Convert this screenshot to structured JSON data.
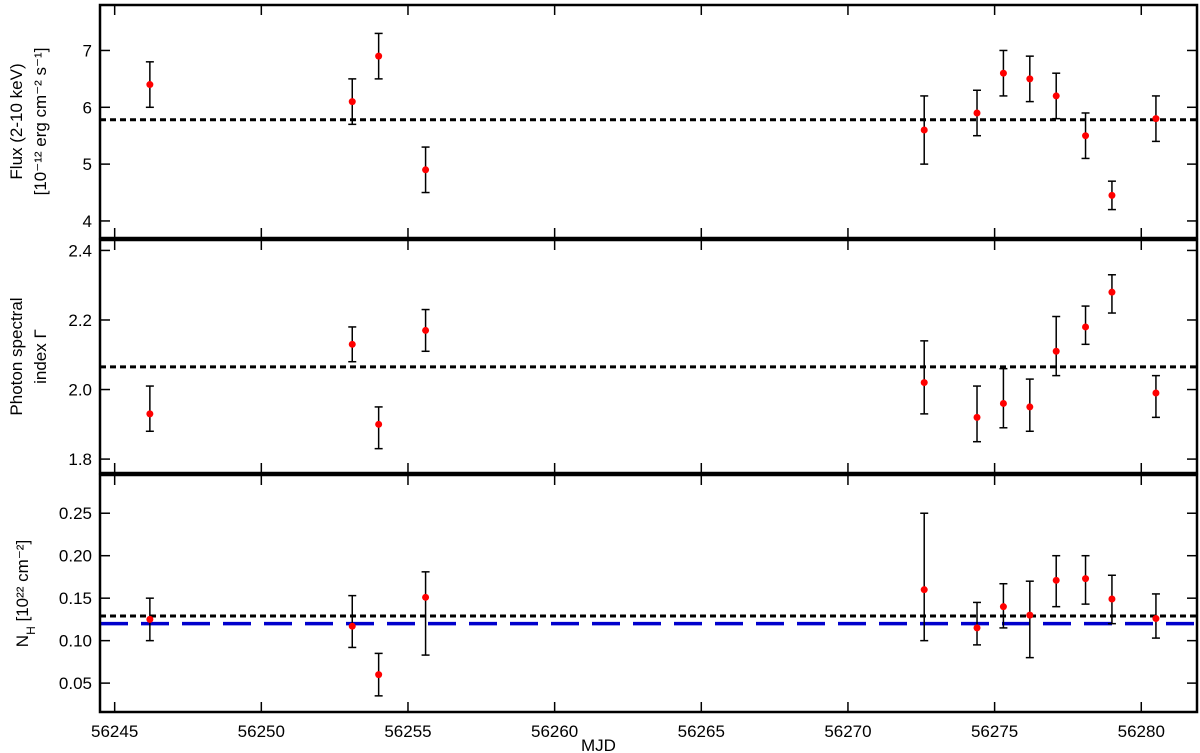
{
  "chart_data": [
    {
      "type": "scatter",
      "ylabel": [
        "Flux (2-10 keV)",
        "[10⁻¹² erg cm⁻² s⁻¹]"
      ],
      "x": [
        56246.2,
        56253.1,
        56254.0,
        56255.6,
        56272.6,
        56274.4,
        56275.3,
        56276.2,
        56277.1,
        56278.1,
        56279.0,
        56280.5
      ],
      "series": [
        {
          "color": "#ff0000",
          "values": [
            6.4,
            6.1,
            6.9,
            4.9,
            5.6,
            5.9,
            6.6,
            6.5,
            6.2,
            5.5,
            4.45,
            5.8
          ],
          "lower": [
            6.0,
            5.7,
            6.5,
            4.5,
            5.0,
            5.5,
            6.2,
            6.1,
            5.8,
            5.1,
            4.2,
            5.4
          ],
          "upper": [
            6.8,
            6.5,
            7.3,
            5.3,
            6.2,
            6.3,
            7.0,
            6.9,
            6.6,
            5.9,
            4.7,
            6.2
          ]
        }
      ],
      "hlines": [
        {
          "value": 5.78,
          "color": "#000000",
          "style": "dotted"
        }
      ],
      "xlim": [
        56244.5,
        56281.9
      ],
      "xticks": [
        56245,
        56250,
        56255,
        56260,
        56265,
        56270,
        56275,
        56280
      ],
      "ylim": [
        3.7,
        7.8
      ],
      "yticks": [
        4,
        5,
        6,
        7
      ]
    },
    {
      "type": "scatter",
      "ylabel": [
        "Photon spectral",
        "index Γ"
      ],
      "x": [
        56246.2,
        56253.1,
        56254.0,
        56255.6,
        56272.6,
        56274.4,
        56275.3,
        56276.2,
        56277.1,
        56278.1,
        56279.0,
        56280.5
      ],
      "series": [
        {
          "color": "#ff0000",
          "values": [
            1.93,
            2.13,
            1.9,
            2.17,
            2.02,
            1.92,
            1.96,
            1.95,
            2.11,
            2.18,
            2.28,
            1.99
          ],
          "lower": [
            1.88,
            2.08,
            1.83,
            2.11,
            1.93,
            1.85,
            1.89,
            1.88,
            2.04,
            2.13,
            2.22,
            1.92
          ],
          "upper": [
            2.01,
            2.18,
            1.95,
            2.23,
            2.14,
            2.01,
            2.06,
            2.03,
            2.21,
            2.24,
            2.33,
            2.04
          ]
        }
      ],
      "hlines": [
        {
          "value": 2.065,
          "color": "#000000",
          "style": "dotted"
        }
      ],
      "xlim": [
        56244.5,
        56281.9
      ],
      "xticks": [
        56245,
        56250,
        56255,
        56260,
        56265,
        56270,
        56275,
        56280
      ],
      "ylim": [
        1.76,
        2.43
      ],
      "yticks": [
        {
          "value": 1.8,
          "label": "1.8"
        },
        {
          "value": 2.0,
          "label": "2.0"
        },
        {
          "value": 2.2,
          "label": "2.2"
        },
        {
          "value": 2.4,
          "label": "2.4"
        }
      ]
    },
    {
      "type": "scatter",
      "ylabel": [
        [
          {
            "text": "N"
          },
          {
            "text": "H",
            "sub": true
          },
          {
            "text": " [10²² cm⁻²]"
          }
        ]
      ],
      "xlabel": "MJD",
      "x": [
        56246.2,
        56253.1,
        56254.0,
        56255.6,
        56272.6,
        56274.4,
        56275.3,
        56276.2,
        56277.1,
        56278.1,
        56279.0,
        56280.5
      ],
      "series": [
        {
          "color": "#ff0000",
          "values": [
            0.125,
            0.117,
            0.06,
            0.151,
            0.16,
            0.115,
            0.14,
            0.13,
            0.171,
            0.173,
            0.149,
            0.126
          ],
          "lower": [
            0.1,
            0.092,
            0.035,
            0.083,
            0.1,
            0.095,
            0.115,
            0.08,
            0.14,
            0.143,
            0.12,
            0.103
          ],
          "upper": [
            0.15,
            0.153,
            0.085,
            0.181,
            0.25,
            0.145,
            0.167,
            0.17,
            0.2,
            0.2,
            0.177,
            0.155
          ]
        }
      ],
      "hlines": [
        {
          "value": 0.129,
          "color": "#000000",
          "style": "dotted"
        },
        {
          "value": 0.12,
          "color": "#0000cc",
          "style": "dashed"
        }
      ],
      "xlim": [
        56244.5,
        56281.9
      ],
      "xticks": [
        56245,
        56250,
        56255,
        56260,
        56265,
        56270,
        56275,
        56280
      ],
      "ylim": [
        0.016,
        0.295
      ],
      "yticks": [
        0.05,
        {
          "value": 0.1,
          "label": "0.10"
        },
        0.15,
        {
          "value": 0.2,
          "label": "0.20"
        },
        0.25
      ]
    }
  ]
}
